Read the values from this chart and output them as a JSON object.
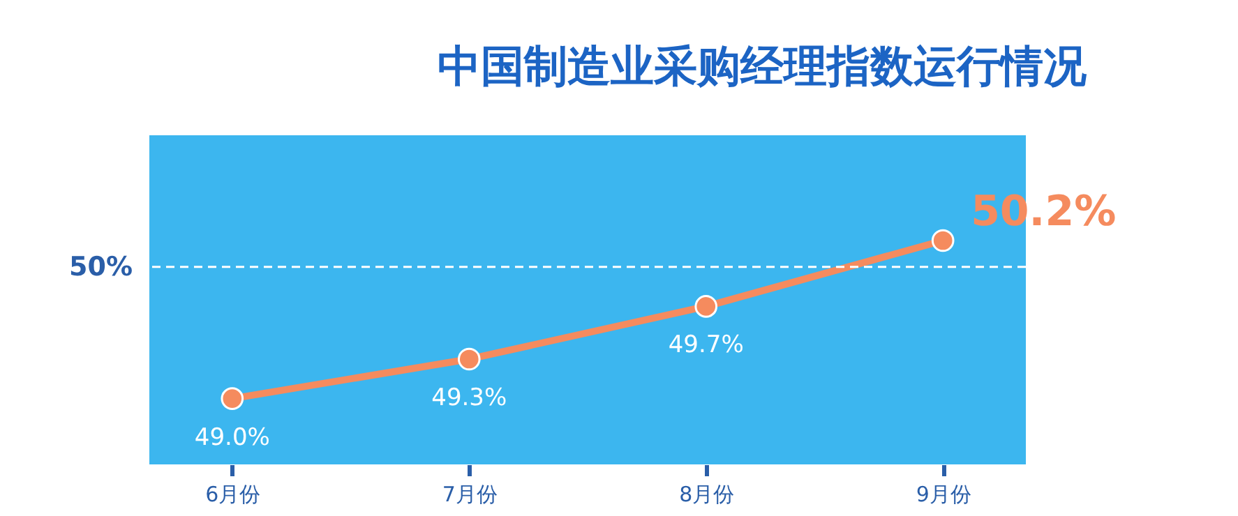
{
  "chart_data": {
    "type": "line",
    "title": "中国制造业采购经理指数运行情况",
    "categories": [
      "6月份",
      "7月份",
      "8月份",
      "9月份"
    ],
    "series": [
      {
        "color": "#f58b5e",
        "values": [
          49.0,
          49.3,
          49.7,
          50.2
        ],
        "value_labels": [
          "49.0%",
          "49.3%",
          "49.7%",
          "50.2%"
        ]
      }
    ],
    "ylim": [
      48.5,
      51.0
    ],
    "tick_labels": "x",
    "grid": false,
    "marker": "circle",
    "line_style": "solid",
    "ref_lines": [
      {
        "axis": "y",
        "value": 50,
        "label": "50%",
        "color": "#ffffff",
        "line_style": "dashed"
      }
    ]
  }
}
